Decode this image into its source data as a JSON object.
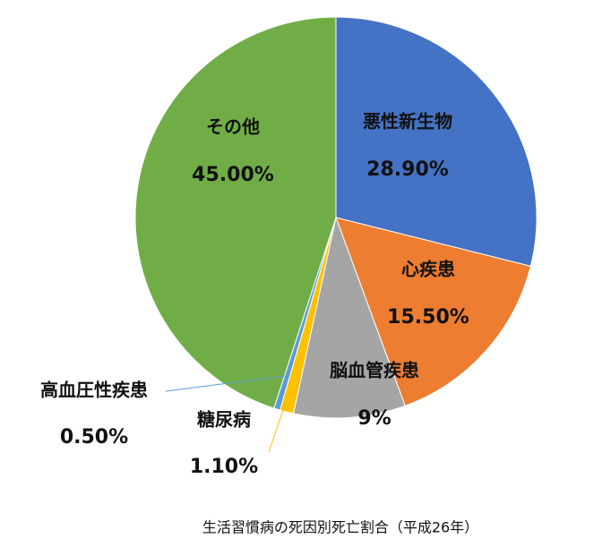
{
  "chart_data": {
    "type": "pie",
    "title": "生活習慣病の死因別死亡割合（平成26年）",
    "categories": [
      "悪性新生物",
      "心疾患",
      "脳血管疾患",
      "糖尿病",
      "高血圧性疾患",
      "その他"
    ],
    "values": [
      28.9,
      15.5,
      9,
      1.1,
      0.5,
      45
    ],
    "value_labels": [
      "28.90%",
      "15.50%",
      "9%",
      "1.10%",
      "0.50%",
      "45.00%"
    ],
    "colors": [
      "#4472c4",
      "#ed7d31",
      "#a5a5a5",
      "#ffc000",
      "#5b9bd5",
      "#70ad47"
    ]
  }
}
